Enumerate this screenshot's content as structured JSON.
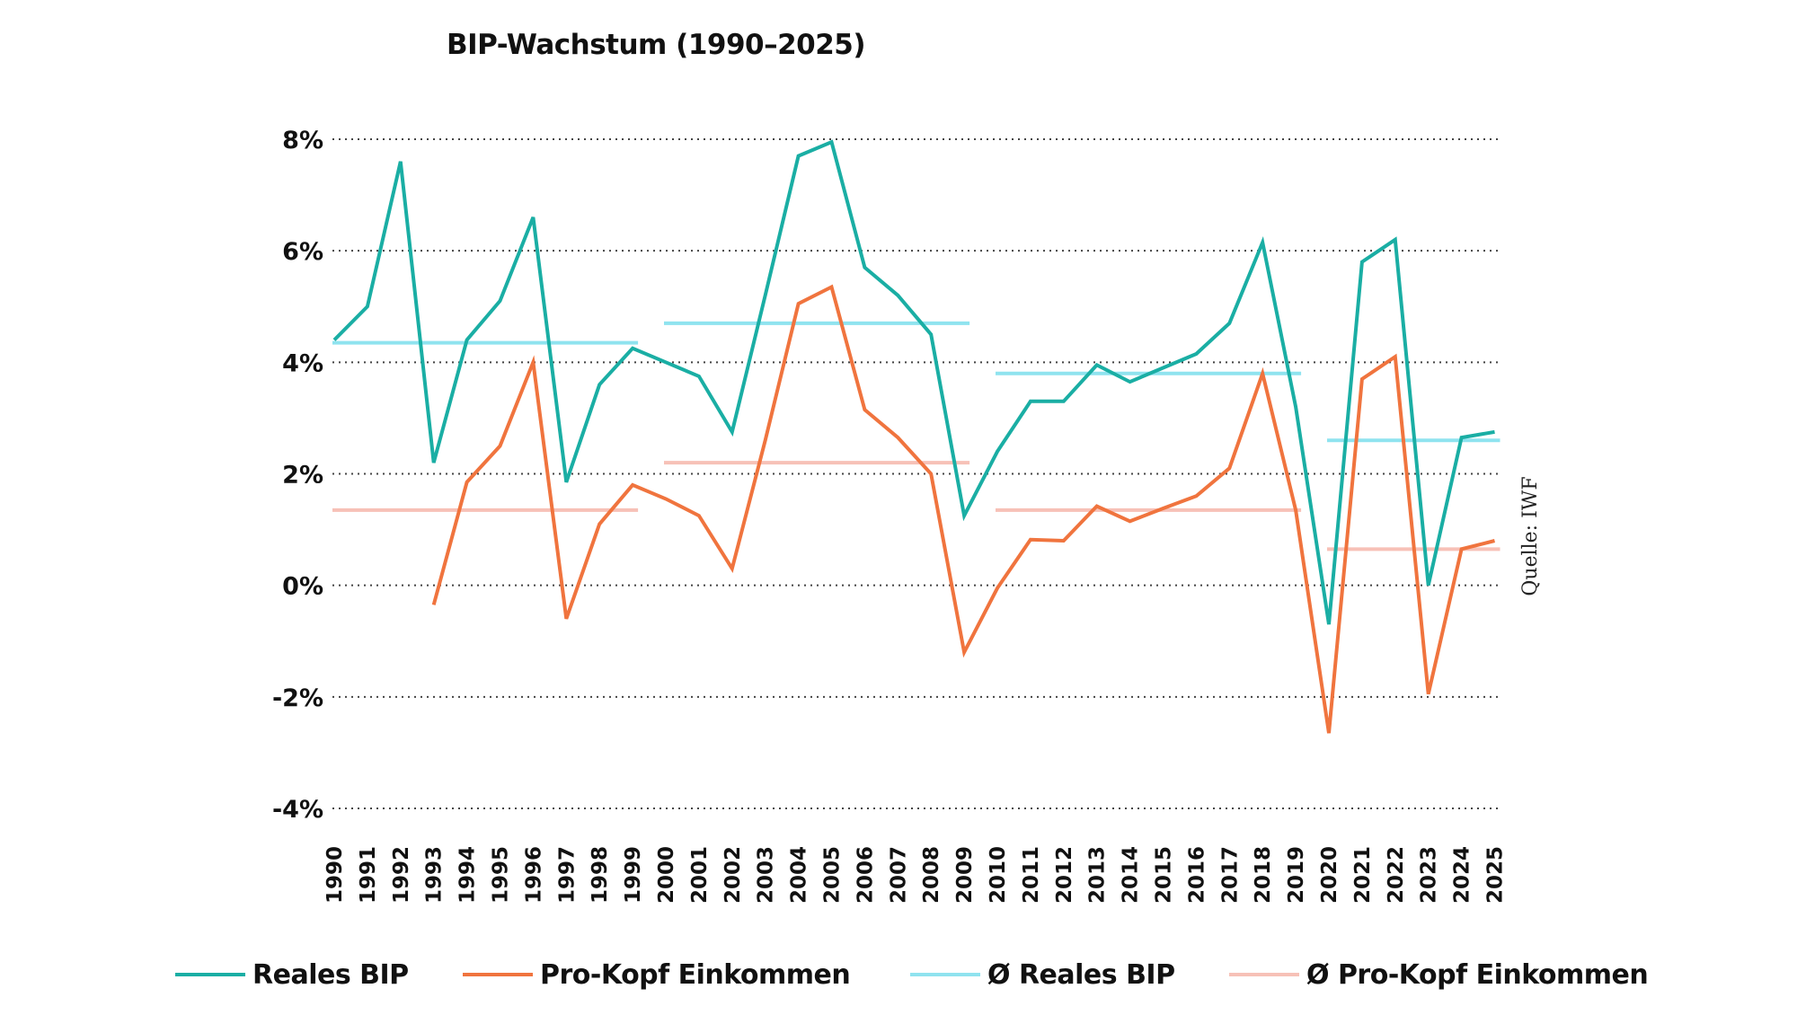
{
  "chart_data": {
    "type": "line",
    "title": "BIP-Wachstum (1990–2025)",
    "source": "Quelle: IWF",
    "xlabel": "",
    "ylabel": "",
    "ylim": [
      -4,
      8
    ],
    "y_ticks": [
      {
        "value": 8,
        "label": "8%"
      },
      {
        "value": 6,
        "label": "6%"
      },
      {
        "value": 4,
        "label": "4%"
      },
      {
        "value": 2,
        "label": "2%"
      },
      {
        "value": 0,
        "label": "0%"
      },
      {
        "value": -2,
        "label": "-2%"
      },
      {
        "value": -4,
        "label": "-4%"
      }
    ],
    "grid": "horizontal dotted",
    "legend_position": "bottom",
    "x": [
      "1990",
      "1991",
      "1992",
      "1993",
      "1994",
      "1995",
      "1996",
      "1997",
      "1998",
      "1999",
      "2000",
      "2001",
      "2002",
      "2003",
      "2004",
      "2005",
      "2006",
      "2007",
      "2008",
      "2009",
      "2010",
      "2011",
      "2012",
      "2013",
      "2014",
      "2015",
      "2016",
      "2017",
      "2018",
      "2019",
      "2020",
      "2021",
      "2022",
      "2023",
      "2024",
      "2025"
    ],
    "series": [
      {
        "name": "Reales BIP",
        "color": "#1aaea4",
        "values": [
          4.4,
          5.0,
          7.6,
          2.2,
          4.4,
          5.1,
          6.6,
          1.85,
          3.6,
          4.25,
          4.0,
          3.75,
          2.75,
          5.2,
          7.7,
          7.95,
          5.7,
          5.2,
          4.5,
          1.25,
          2.4,
          3.3,
          3.3,
          3.95,
          3.65,
          3.9,
          4.15,
          4.7,
          6.15,
          3.2,
          -0.7,
          5.8,
          6.2,
          0.0,
          2.65,
          2.75
        ]
      },
      {
        "name": "Pro-Kopf Einkommen",
        "color": "#f0743e",
        "values": [
          null,
          null,
          null,
          -0.35,
          1.85,
          2.5,
          4.0,
          -0.6,
          1.1,
          1.8,
          1.55,
          1.25,
          0.3,
          2.6,
          5.05,
          5.35,
          3.15,
          2.65,
          2.0,
          -1.2,
          -0.05,
          0.82,
          0.8,
          1.42,
          1.15,
          1.38,
          1.6,
          2.1,
          3.8,
          1.35,
          -2.65,
          3.7,
          4.1,
          -1.95,
          0.65,
          0.8
        ]
      }
    ],
    "averages": [
      {
        "name": "Ø Reales BIP",
        "color": "#8fe3ef",
        "segments": [
          {
            "from": "1990",
            "to": "1999",
            "value": 4.35
          },
          {
            "from": "2000",
            "to": "2009",
            "value": 4.7
          },
          {
            "from": "2010",
            "to": "2019",
            "value": 3.8
          },
          {
            "from": "2020",
            "to": "2025",
            "value": 2.6
          }
        ]
      },
      {
        "name": "Ø Pro-Kopf Einkommen",
        "color": "#f7c1b7",
        "segments": [
          {
            "from": "1990",
            "to": "1999",
            "value": 1.35
          },
          {
            "from": "2000",
            "to": "2009",
            "value": 2.2
          },
          {
            "from": "2010",
            "to": "2019",
            "value": 1.35
          },
          {
            "from": "2020",
            "to": "2025",
            "value": 0.65
          }
        ]
      }
    ]
  },
  "legend": [
    {
      "label": "Reales BIP",
      "color": "#1aaea4"
    },
    {
      "label": "Pro-Kopf Einkommen",
      "color": "#f0743e"
    },
    {
      "label": "Ø Reales BIP",
      "color": "#8fe3ef"
    },
    {
      "label": "Ø Pro-Kopf Einkommen",
      "color": "#f7c1b7"
    }
  ]
}
